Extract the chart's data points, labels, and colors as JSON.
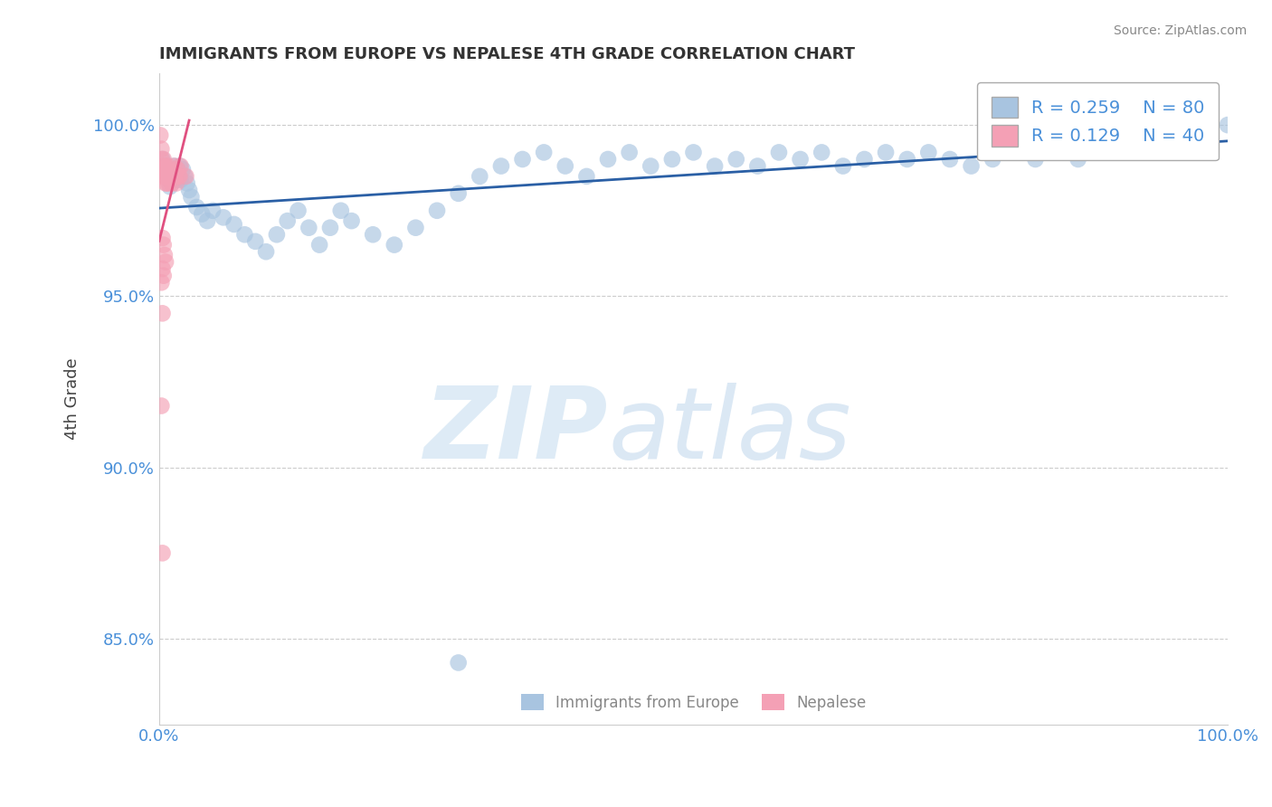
{
  "title": "IMMIGRANTS FROM EUROPE VS NEPALESE 4TH GRADE CORRELATION CHART",
  "source_text": "Source: ZipAtlas.com",
  "ylabel": "4th Grade",
  "xlim": [
    0.0,
    1.0
  ],
  "ylim": [
    0.825,
    1.015
  ],
  "yticks": [
    0.85,
    0.9,
    0.95,
    1.0
  ],
  "ytick_labels": [
    "85.0%",
    "90.0%",
    "95.0%",
    "100.0%"
  ],
  "xticks": [
    0.0,
    1.0
  ],
  "xtick_labels": [
    "0.0%",
    "100.0%"
  ],
  "legend_R1": "R = 0.259",
  "legend_N1": "N = 80",
  "legend_R2": "R = 0.129",
  "legend_N2": "N = 40",
  "legend_label1": "Immigrants from Europe",
  "legend_label2": "Nepalese",
  "blue_color": "#a8c4e0",
  "blue_line_color": "#2a5fa5",
  "pink_color": "#f4a0b5",
  "pink_line_color": "#e05080",
  "background_color": "#ffffff",
  "blue_scatter_x": [
    0.003,
    0.005,
    0.007,
    0.008,
    0.009,
    0.01,
    0.011,
    0.012,
    0.013,
    0.014,
    0.015,
    0.016,
    0.017,
    0.018,
    0.019,
    0.02,
    0.022,
    0.024,
    0.026,
    0.028,
    0.03,
    0.035,
    0.04,
    0.045,
    0.05,
    0.06,
    0.07,
    0.08,
    0.09,
    0.1,
    0.11,
    0.12,
    0.13,
    0.14,
    0.15,
    0.16,
    0.17,
    0.18,
    0.2,
    0.22,
    0.24,
    0.26,
    0.28,
    0.3,
    0.32,
    0.34,
    0.36,
    0.38,
    0.4,
    0.42,
    0.44,
    0.46,
    0.48,
    0.5,
    0.52,
    0.54,
    0.56,
    0.58,
    0.6,
    0.62,
    0.64,
    0.66,
    0.68,
    0.7,
    0.72,
    0.74,
    0.76,
    0.78,
    0.8,
    0.82,
    0.84,
    0.86,
    0.88,
    0.9,
    0.92,
    0.94,
    0.96,
    0.98,
    1.0,
    0.28
  ],
  "blue_scatter_y": [
    0.99,
    0.988,
    0.985,
    0.987,
    0.984,
    0.982,
    0.987,
    0.985,
    0.984,
    0.988,
    0.986,
    0.984,
    0.987,
    0.985,
    0.988,
    0.984,
    0.987,
    0.985,
    0.983,
    0.981,
    0.979,
    0.976,
    0.974,
    0.972,
    0.975,
    0.973,
    0.971,
    0.968,
    0.966,
    0.963,
    0.968,
    0.972,
    0.975,
    0.97,
    0.965,
    0.97,
    0.975,
    0.972,
    0.968,
    0.965,
    0.97,
    0.975,
    0.98,
    0.985,
    0.988,
    0.99,
    0.992,
    0.988,
    0.985,
    0.99,
    0.992,
    0.988,
    0.99,
    0.992,
    0.988,
    0.99,
    0.988,
    0.992,
    0.99,
    0.992,
    0.988,
    0.99,
    0.992,
    0.99,
    0.992,
    0.99,
    0.988,
    0.99,
    0.992,
    0.99,
    0.992,
    0.99,
    0.992,
    0.998,
    0.999,
    1.0,
    0.998,
    0.999,
    1.0,
    0.843
  ],
  "pink_scatter_x": [
    0.001,
    0.002,
    0.002,
    0.003,
    0.003,
    0.004,
    0.004,
    0.005,
    0.005,
    0.006,
    0.006,
    0.007,
    0.007,
    0.008,
    0.008,
    0.009,
    0.009,
    0.01,
    0.01,
    0.011,
    0.012,
    0.013,
    0.014,
    0.015,
    0.016,
    0.017,
    0.018,
    0.019,
    0.02,
    0.025,
    0.003,
    0.004,
    0.005,
    0.006,
    0.003,
    0.004,
    0.002,
    0.003,
    0.002,
    0.003
  ],
  "pink_scatter_y": [
    0.997,
    0.993,
    0.99,
    0.988,
    0.987,
    0.985,
    0.99,
    0.988,
    0.985,
    0.983,
    0.987,
    0.985,
    0.983,
    0.985,
    0.988,
    0.985,
    0.983,
    0.985,
    0.987,
    0.985,
    0.983,
    0.985,
    0.988,
    0.985,
    0.983,
    0.987,
    0.985,
    0.985,
    0.988,
    0.985,
    0.967,
    0.965,
    0.962,
    0.96,
    0.958,
    0.956,
    0.954,
    0.945,
    0.918,
    0.875
  ]
}
